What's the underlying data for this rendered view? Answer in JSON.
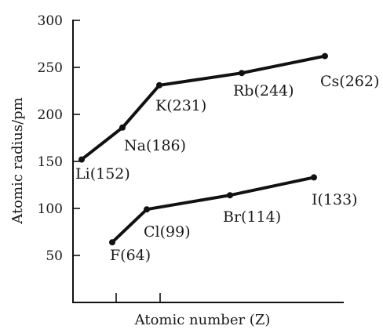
{
  "chart_data": {
    "type": "line",
    "title": "",
    "xlabel": "Atomic number (Z)",
    "ylabel": "Atomic radius/pm",
    "ylim": [
      0,
      300
    ],
    "yticks": [
      50,
      100,
      150,
      200,
      250,
      300
    ],
    "grid": false,
    "legend": "none",
    "series": [
      {
        "points": [
          {
            "label": "Li(152)",
            "value": 152
          },
          {
            "label": "Na(186)",
            "value": 186
          },
          {
            "label": "K(231)",
            "value": 231
          },
          {
            "label": "Rb(244)",
            "value": 244
          },
          {
            "label": "Cs(262)",
            "value": 262
          }
        ]
      },
      {
        "points": [
          {
            "label": "F(64)",
            "value": 64
          },
          {
            "label": "Cl(99)",
            "value": 99
          },
          {
            "label": "Br(114)",
            "value": 114
          },
          {
            "label": "I(133)",
            "value": 133
          }
        ]
      }
    ],
    "colors": {
      "line": "#111111",
      "text": "#1a1a1a"
    }
  }
}
